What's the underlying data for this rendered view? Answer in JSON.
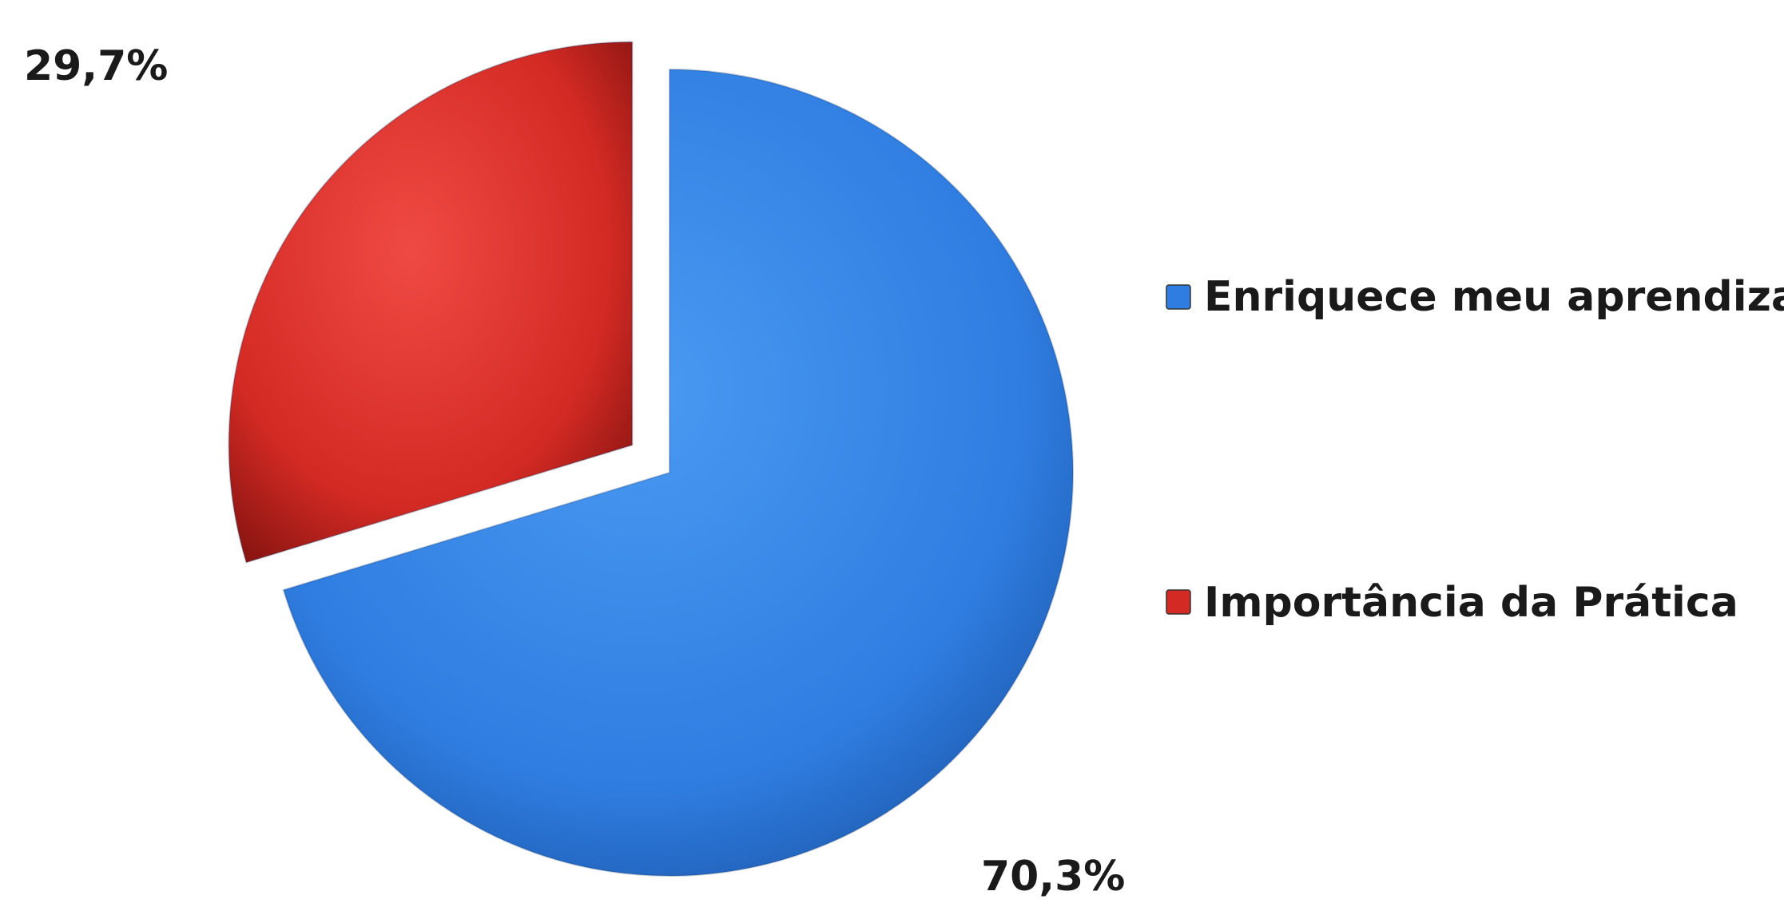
{
  "chart_data": {
    "type": "pie",
    "title": "",
    "slices": [
      {
        "label": "Enriquece meu aprendizado",
        "value": 70.3,
        "value_label": "70,3%",
        "color": "#2f7de1",
        "exploded": false
      },
      {
        "label": "Importância da Prática",
        "value": 29.7,
        "value_label": "29,7%",
        "color": "#d42a24",
        "exploded": true
      }
    ],
    "legend": {
      "placement": "right",
      "items": [
        {
          "label": "Enriquece meu aprendizado",
          "color": "#2f7de1"
        },
        {
          "label": "Importância da Prática",
          "color": "#d42a24"
        }
      ]
    }
  }
}
